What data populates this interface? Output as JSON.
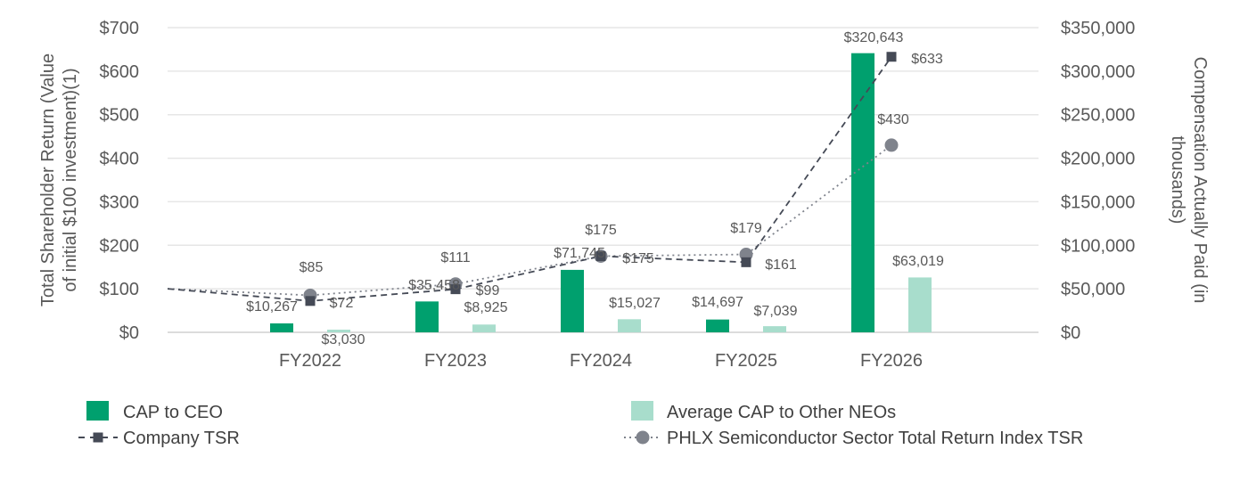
{
  "chart_data": {
    "type": "bar",
    "categories": [
      "FY2022",
      "FY2023",
      "FY2024",
      "FY2025",
      "FY2026"
    ],
    "y_left": {
      "label_lines": [
        "Total Shareholder Return (Value",
        "of initial $100 investment)(1)"
      ],
      "ticks": [
        "$0",
        "$100",
        "$200",
        "$300",
        "$400",
        "$500",
        "$600",
        "$700"
      ],
      "range": [
        0,
        700
      ]
    },
    "y_right": {
      "label_lines": [
        "Compensation Actually Paid (in",
        "thousands)"
      ],
      "ticks": [
        "$0",
        "$50,000",
        "$100,000",
        "$150,000",
        "$200,000",
        "$250,000",
        "$300,000",
        "$350,000"
      ],
      "range": [
        0,
        350000
      ]
    },
    "grid": true,
    "legend_position": "bottom",
    "series": [
      {
        "name": "CAP to CEO",
        "kind": "bar",
        "axis": "right",
        "color": "#00a06e",
        "values": [
          10267,
          35458,
          71745,
          14697,
          320643
        ],
        "labels": [
          "$10,267",
          "$35,458",
          "$71,745",
          "$14,697",
          "$320,643"
        ]
      },
      {
        "name": "Average CAP to Other NEOs",
        "kind": "bar",
        "axis": "right",
        "color": "#a8ddcc",
        "values": [
          3030,
          8925,
          15027,
          7039,
          63019
        ],
        "labels": [
          "$3,030",
          "$8,925",
          "$15,027",
          "$7,039",
          "$63,019"
        ]
      },
      {
        "name": "Company TSR",
        "kind": "line",
        "axis": "left",
        "color": "#454a56",
        "dash": "dashed",
        "marker": "square",
        "start_value": 100,
        "values": [
          72,
          99,
          175,
          161,
          633
        ],
        "labels": [
          "$72",
          "$99",
          "$175",
          "$161",
          "$633"
        ]
      },
      {
        "name": "PHLX Semiconductor Sector Total Return Index TSR",
        "kind": "line",
        "axis": "left",
        "color": "#7f838c",
        "dash": "dotted",
        "marker": "circle",
        "start_value": 100,
        "values": [
          85,
          111,
          175,
          179,
          430
        ],
        "labels": [
          "$85",
          "$111",
          "$175",
          "$179",
          "$430"
        ]
      }
    ]
  }
}
